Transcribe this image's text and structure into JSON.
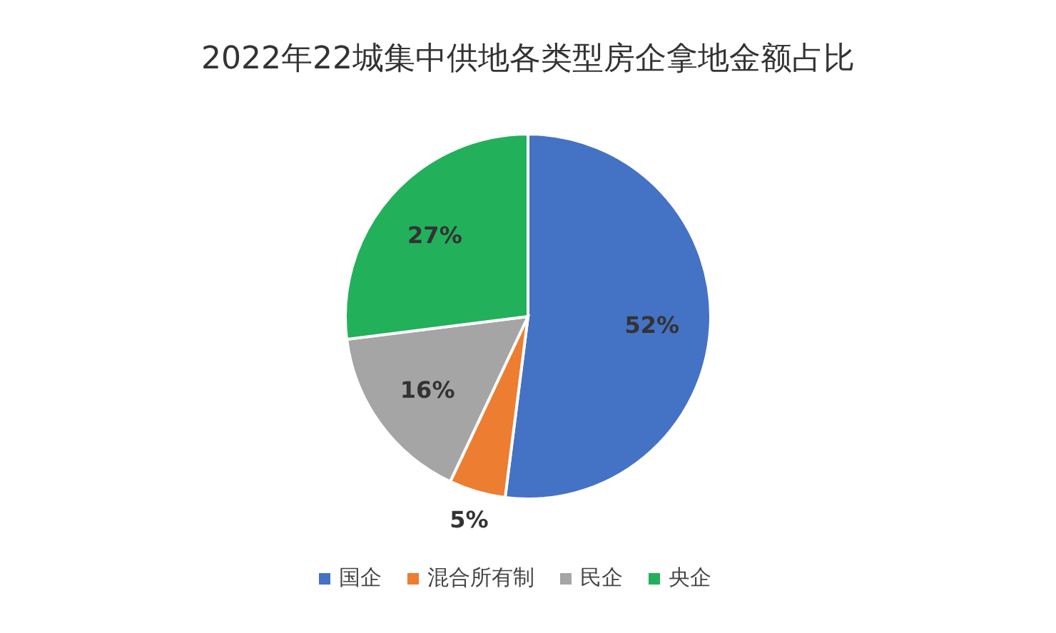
{
  "chart_data": {
    "type": "pie",
    "title": "2022年22城集中供地各类型房企拿地金额占比",
    "categories": [
      "国企",
      "混合所有制",
      "民企",
      "央企"
    ],
    "values": [
      52,
      5,
      16,
      27
    ],
    "colors": [
      "#4472c4",
      "#ed7d31",
      "#a5a5a5",
      "#22b05a"
    ],
    "value_labels": [
      "52%",
      "5%",
      "16%",
      "27%"
    ],
    "legend": "bottom"
  }
}
